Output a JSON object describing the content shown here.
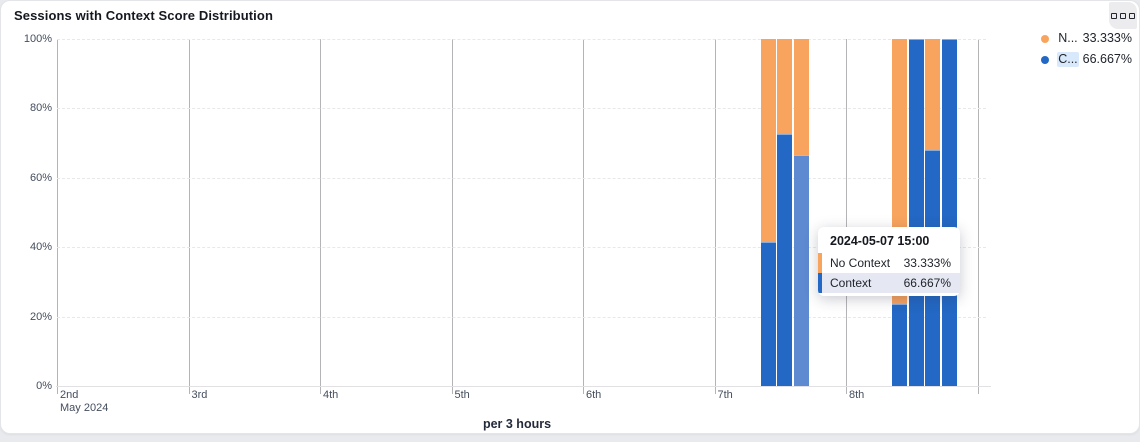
{
  "panel": {
    "title": "Sessions with Context Score Distribution"
  },
  "options_button": {
    "icon": "three-boxes-menu-icon"
  },
  "legend": {
    "items": [
      {
        "abbrev": "N...",
        "value": "33.333%",
        "color": "#f9a45e",
        "highlighted": false
      },
      {
        "abbrev": "C...",
        "value": "66.667%",
        "color": "#2368c4",
        "highlighted": true
      }
    ]
  },
  "tooltip": {
    "header": "2024-05-07 15:00",
    "rows": [
      {
        "name": "No Context",
        "value": "33.333%",
        "color": "#f9a45e",
        "highlighted": false
      },
      {
        "name": "Context",
        "value": "66.667%",
        "color": "#2368c4",
        "highlighted": true
      }
    ]
  },
  "chart_data": {
    "type": "bar",
    "stacked": true,
    "title": "Sessions with Context Score Distribution",
    "xlabel": "per 3 hours",
    "ylabel": "",
    "ylim": [
      0,
      100
    ],
    "y_tick_labels": [
      "0%",
      "20%",
      "40%",
      "60%",
      "80%",
      "100%"
    ],
    "x_axis": {
      "tick_labels": [
        "2nd",
        "3rd",
        "4th",
        "5th",
        "6th",
        "7th",
        "8th"
      ],
      "subtitle": "May 2024",
      "bucket": "3 hours"
    },
    "grid": {
      "vertical": "solid per day",
      "horizontal": "dashed per 20%"
    },
    "legend_position": "top-right",
    "series": [
      {
        "name": "Context",
        "color": "#2368c4"
      },
      {
        "name": "No Context",
        "color": "#f9a45e"
      }
    ],
    "colors": {
      "context": "#2368c4",
      "context_emphasized": "#5e8ad2",
      "no_context": "#f9a45e"
    },
    "bars": [
      {
        "time": "2024-05-07 09:00",
        "context": 41.5,
        "no_context": 58.5
      },
      {
        "time": "2024-05-07 12:00",
        "context": 72.5,
        "no_context": 27.5
      },
      {
        "time": "2024-05-07 15:00",
        "context": 66.667,
        "no_context": 33.333,
        "emphasized": true
      },
      {
        "time": "2024-05-08 09:00",
        "context": 23.5,
        "no_context": 76.5
      },
      {
        "time": "2024-05-08 12:00",
        "context": 100,
        "no_context": 0
      },
      {
        "time": "2024-05-08 15:00",
        "context": 68,
        "no_context": 32
      },
      {
        "time": "2024-05-08 18:00",
        "context": 100,
        "no_context": 0
      }
    ]
  }
}
